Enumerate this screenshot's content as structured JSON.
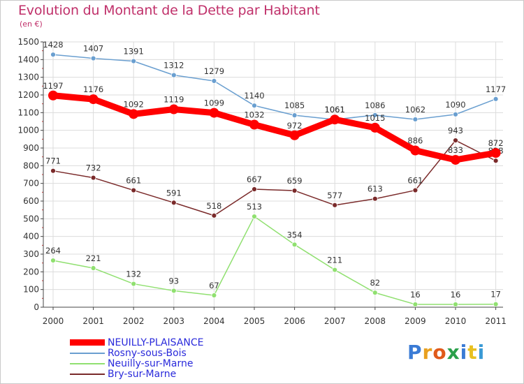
{
  "title": "Evolution du Montant de la Dette par Habitant",
  "unit_label": "(en €)",
  "brand": {
    "letters": [
      "P",
      "r",
      "o",
      "x",
      "i",
      "t",
      "i"
    ],
    "colors": [
      "#3a7bd5",
      "#e8a020",
      "#e05a1a",
      "#2aa04a",
      "#3a7bd5",
      "#e8c020",
      "#3a9ad5"
    ]
  },
  "chart_data": {
    "type": "line",
    "x": [
      "2000",
      "2001",
      "2002",
      "2003",
      "2004",
      "2005",
      "2006",
      "2007",
      "2008",
      "2009",
      "2010",
      "2011"
    ],
    "ylim": [
      0,
      1500
    ],
    "yticks": [
      0,
      100,
      200,
      300,
      400,
      500,
      600,
      700,
      800,
      900,
      1000,
      1100,
      1200,
      1300,
      1400,
      1500
    ],
    "grid": true,
    "legend_position": "bottom-left",
    "series": [
      {
        "name": "Rosny-sous-Bois",
        "color": "#6a9fd0",
        "values": [
          1428,
          1407,
          1391,
          1312,
          1279,
          1140,
          1085,
          1061,
          1086,
          1062,
          1090,
          1177
        ]
      },
      {
        "name": "Neuilly-sur-Marne",
        "color": "#90e070",
        "values": [
          264,
          221,
          132,
          93,
          67,
          513,
          354,
          211,
          82,
          16,
          16,
          17
        ]
      },
      {
        "name": "Bry-sur-Marne",
        "color": "#7a2a2a",
        "values": [
          771,
          732,
          661,
          591,
          518,
          667,
          659,
          577,
          613,
          661,
          943,
          828
        ]
      },
      {
        "name": "NEUILLY-PLAISANCE",
        "color": "#ff0000",
        "values": [
          1197,
          1176,
          1092,
          1119,
          1099,
          1032,
          972,
          1061,
          1015,
          886,
          833,
          872
        ]
      }
    ],
    "legend_order": [
      "NEUILLY-PLAISANCE",
      "Rosny-sous-Bois",
      "Neuilly-sur-Marne",
      "Bry-sur-Marne"
    ],
    "highlight_series": "NEUILLY-PLAISANCE"
  }
}
